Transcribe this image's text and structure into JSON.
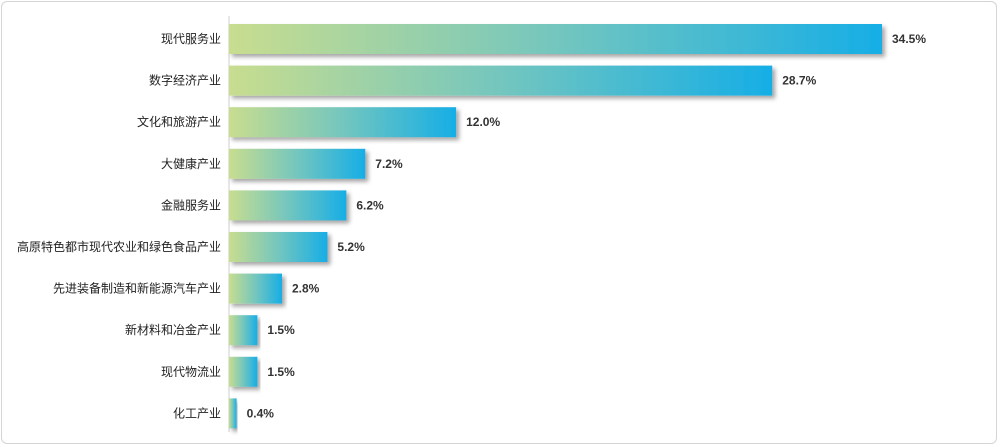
{
  "chart_data": {
    "type": "bar",
    "orientation": "horizontal",
    "categories": [
      "现代服务业",
      "数字经济产业",
      "文化和旅游产业",
      "大健康产业",
      "金融服务业",
      "高原特色都市现代农业和绿色食品产业",
      "先进装备制造和新能源汽车产业",
      "新材料和冶金产业",
      "现代物流业",
      "化工产业"
    ],
    "values": [
      34.5,
      28.7,
      12.0,
      7.2,
      6.2,
      5.2,
      2.8,
      1.5,
      1.5,
      0.4
    ],
    "value_labels": [
      "34.5%",
      "28.7%",
      "12.0%",
      "7.2%",
      "6.2%",
      "5.2%",
      "2.8%",
      "1.5%",
      "1.5%",
      "0.4%"
    ],
    "unit": "%",
    "xlim": [
      0,
      34.5
    ],
    "grid": false,
    "legend": "none",
    "colors": {
      "gradient_start": "#c8dd8f",
      "gradient_mid": "#74c6be",
      "gradient_end": "#16aee6",
      "shadow": "#9a9a9a"
    }
  }
}
